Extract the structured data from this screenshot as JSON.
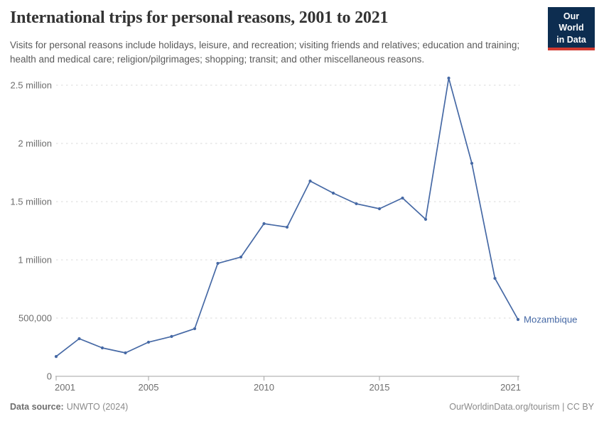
{
  "header": {
    "title": "International trips for personal reasons, 2001 to 2021",
    "subtitle": "Visits for personal reasons include holidays, leisure, and recreation; visiting friends and relatives; education and training; health and medical care; religion/pilgrimages; shopping; transit; and other miscellaneous reasons.",
    "logo": {
      "line1": "Our World",
      "line2": "in Data",
      "bg_color": "#0d2d50",
      "accent_color": "#d13930"
    }
  },
  "chart_data": {
    "type": "line",
    "title": "International trips for personal reasons, 2001 to 2021",
    "entity": "Mozambique",
    "x": [
      2001,
      2002,
      2003,
      2004,
      2005,
      2006,
      2007,
      2008,
      2009,
      2010,
      2011,
      2012,
      2013,
      2014,
      2015,
      2016,
      2017,
      2018,
      2019,
      2020,
      2021
    ],
    "values": [
      170000,
      323000,
      244000,
      201000,
      293000,
      342000,
      409000,
      970000,
      1024000,
      1311000,
      1281000,
      1677000,
      1573000,
      1482000,
      1439000,
      1531000,
      1348000,
      2561000,
      1829000,
      841000,
      488000
    ],
    "x_ticks": [
      2001,
      2005,
      2010,
      2015,
      2021
    ],
    "y_ticks": [
      {
        "value": 0,
        "label": "0"
      },
      {
        "value": 500000,
        "label": "500,000"
      },
      {
        "value": 1000000,
        "label": "1 million"
      },
      {
        "value": 1500000,
        "label": "1.5 million"
      },
      {
        "value": 2000000,
        "label": "2 million"
      },
      {
        "value": 2500000,
        "label": "2.5 million"
      }
    ],
    "ylim": [
      0,
      2600000
    ],
    "xlabel": "",
    "ylabel": "",
    "grid": true,
    "grid_style": "dashed",
    "markers": "dots",
    "legend_position": "end-of-line-label",
    "line_color": "#4669A5",
    "colors": {
      "grid": "#d9d9d9",
      "axis": "#a3a3a3",
      "tick_label": "#6e6e6e"
    }
  },
  "footer": {
    "source_label": "Data source:",
    "source_value": "UNWTO (2024)",
    "attribution": "OurWorldinData.org/tourism | CC BY"
  }
}
